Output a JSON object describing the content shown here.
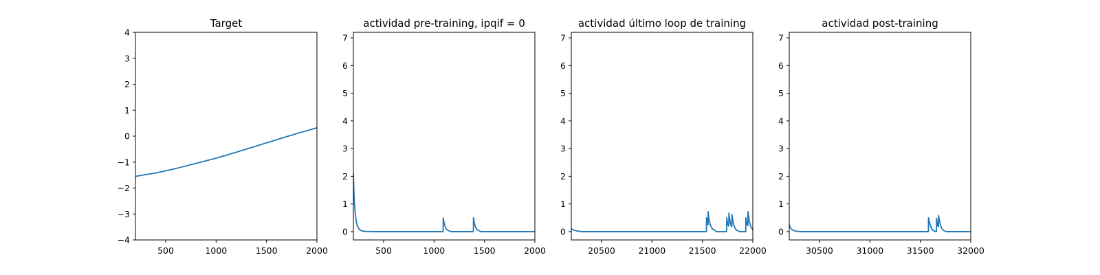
{
  "colors": {
    "series": "#1f77b4",
    "background": "#ffffff",
    "axes": "#000000"
  },
  "chart_data": [
    {
      "type": "line",
      "title": "Target",
      "xlabel": "",
      "ylabel": "",
      "xlim": [
        200,
        2000
      ],
      "ylim": [
        -4,
        4
      ],
      "xticks": [
        500,
        1000,
        1500,
        2000
      ],
      "yticks": [
        -4,
        -3,
        -2,
        -1,
        0,
        1,
        2,
        3,
        4
      ],
      "grid": false,
      "series": [
        {
          "x": [
            200,
            400,
            600,
            800,
            1000,
            1200,
            1400,
            1600,
            1800,
            2000
          ],
          "y": [
            -1.55,
            -1.42,
            -1.25,
            -1.05,
            -0.85,
            -0.62,
            -0.38,
            -0.14,
            0.1,
            0.32
          ]
        }
      ]
    },
    {
      "type": "line",
      "title": "actividad pre-training, ipqif = 0",
      "xlabel": "",
      "ylabel": "",
      "xlim": [
        200,
        2000
      ],
      "ylim": [
        -0.3,
        7.2
      ],
      "xticks": [
        500,
        1000,
        1500,
        2000
      ],
      "yticks": [
        0,
        1,
        2,
        3,
        4,
        5,
        6,
        7
      ],
      "grid": false,
      "series": [
        {
          "x": [
            200,
            205,
            210,
            215,
            220,
            230,
            240,
            255,
            270,
            290,
            320,
            400,
            1090,
            1091,
            1095,
            1100,
            1110,
            1120,
            1140,
            1170,
            1390,
            1391,
            1395,
            1400,
            1410,
            1420,
            1440,
            1470,
            2000
          ],
          "y": [
            2.1,
            1.5,
            1.1,
            0.8,
            0.6,
            0.35,
            0.2,
            0.1,
            0.05,
            0.02,
            0.01,
            0.0,
            0.0,
            0.5,
            0.42,
            0.3,
            0.18,
            0.1,
            0.04,
            0.0,
            0.0,
            0.5,
            0.42,
            0.3,
            0.18,
            0.1,
            0.04,
            0.0,
            0.0
          ]
        }
      ]
    },
    {
      "type": "line",
      "title": "actividad último loop de training",
      "xlabel": "",
      "ylabel": "",
      "xlim": [
        20200,
        22000
      ],
      "ylim": [
        -0.3,
        7.2
      ],
      "xticks": [
        20500,
        21000,
        21500,
        22000
      ],
      "yticks": [
        0,
        1,
        2,
        3,
        4,
        5,
        6,
        7
      ],
      "grid": false,
      "series": [
        {
          "x": [
            20200,
            20220,
            20250,
            20300,
            21540,
            21541,
            21550,
            21556,
            21557,
            21565,
            21580,
            21600,
            21640,
            21740,
            21741,
            21752,
            21762,
            21763,
            21775,
            21785,
            21792,
            21793,
            21805,
            21820,
            21840,
            21870,
            21930,
            21931,
            21943,
            21951,
            21952,
            21965,
            21980,
            22000
          ],
          "y": [
            0.1,
            0.06,
            0.03,
            0.0,
            0.0,
            0.5,
            0.3,
            0.25,
            0.72,
            0.45,
            0.22,
            0.1,
            0.0,
            0.0,
            0.5,
            0.25,
            0.2,
            0.67,
            0.35,
            0.22,
            0.18,
            0.62,
            0.33,
            0.15,
            0.05,
            0.0,
            0.0,
            0.5,
            0.25,
            0.22,
            0.72,
            0.38,
            0.18,
            0.07
          ]
        }
      ]
    },
    {
      "type": "line",
      "title": "actividad post-training",
      "xlabel": "",
      "ylabel": "",
      "xlim": [
        30200,
        32000
      ],
      "ylim": [
        -0.3,
        7.2
      ],
      "xticks": [
        30500,
        31000,
        31500,
        32000
      ],
      "yticks": [
        0,
        1,
        2,
        3,
        4,
        5,
        6,
        7
      ],
      "grid": false,
      "series": [
        {
          "x": [
            30200,
            30210,
            30225,
            30250,
            30300,
            31580,
            31581,
            31595,
            31610,
            31630,
            31660,
            31661,
            31672,
            31680,
            31681,
            31695,
            31710,
            31730,
            31760,
            32000
          ],
          "y": [
            0.25,
            0.15,
            0.08,
            0.03,
            0.0,
            0.0,
            0.5,
            0.28,
            0.12,
            0.03,
            0.0,
            0.48,
            0.22,
            0.18,
            0.58,
            0.3,
            0.13,
            0.04,
            0.0,
            0.0
          ]
        }
      ]
    }
  ]
}
